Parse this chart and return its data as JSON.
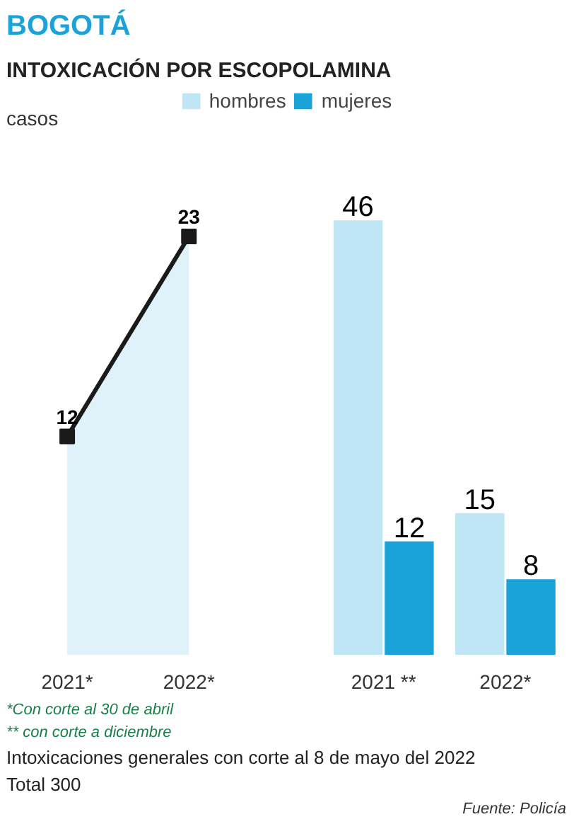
{
  "chart_data": [
    {
      "type": "area",
      "title": "BOGOTÁ",
      "subtitle": "INTOXICACIÓN POR ESCOPOLAMINA",
      "ylabel": "casos",
      "categories": [
        "2021*",
        "2022*"
      ],
      "series": [
        {
          "color": "#dff1f9",
          "values": [
            12,
            23
          ]
        }
      ],
      "marker": "square",
      "data_labels": true,
      "grid": false
    },
    {
      "type": "bar",
      "categories": [
        "2021 **",
        "2022*"
      ],
      "series": [
        {
          "name": "hombres",
          "color": "#bfe6f5",
          "values": [
            46,
            15
          ]
        },
        {
          "name": "mujeres",
          "color": "#1aa3d9",
          "values": [
            12,
            8
          ]
        }
      ],
      "data_labels": true,
      "grid": false,
      "legend": "top",
      "annotations": [
        "*Con corte al 30 de abril",
        "** con corte a diciembre",
        "Intoxicaciones generales con corte al 8 de mayo del 2022",
        "Total 300",
        "Fuente: Policía"
      ]
    }
  ]
}
